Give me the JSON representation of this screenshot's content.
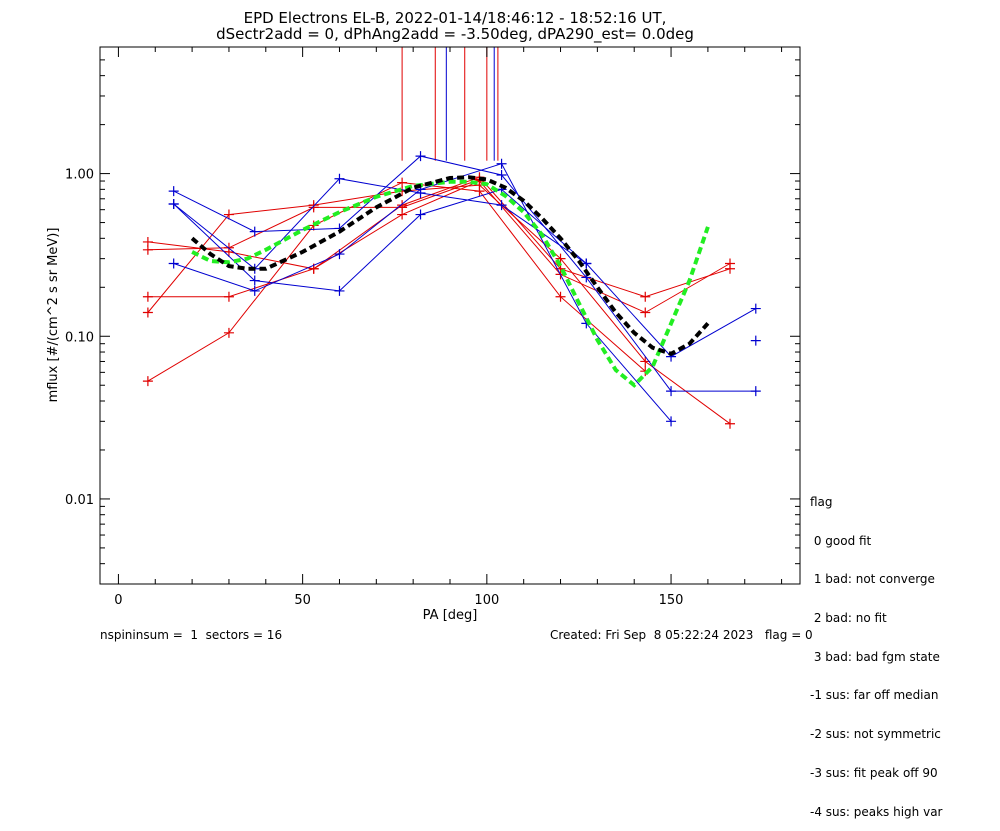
{
  "chart_data": {
    "type": "line",
    "title": "EPD Electrons EL-B, 2022-01-14/18:46:12 - 18:52:16 UT,",
    "subtitle": "dSectr2add = 0, dPhAng2add = -3.50deg, dPA290_est=   0.0deg",
    "xlabel": "PA [deg]",
    "ylabel": "mflux [#/(cm^2 s sr MeV)]",
    "xlim": [
      -5,
      185
    ],
    "ylim": [
      0.003,
      6
    ],
    "yscale": "log",
    "x_ticks": [
      0,
      50,
      100,
      150
    ],
    "x_tick_labels": [
      "0",
      "50",
      "100",
      "150"
    ],
    "y_ticks": [
      0.01,
      0.1,
      1.0
    ],
    "y_tick_labels": [
      "0.01",
      "0.10",
      "1.00"
    ],
    "grid": false,
    "colors": {
      "red": "#e00000",
      "blue": "#0000d0",
      "green": "#22ee22",
      "black": "#000000"
    },
    "series": [
      {
        "color": "red",
        "style": "line-plus",
        "x": [
          8,
          30,
          53,
          77,
          98,
          120,
          143,
          166
        ],
        "y": [
          0.38,
          0.33,
          0.26,
          0.64,
          0.95,
          0.26,
          0.175,
          0.26
        ]
      },
      {
        "color": "red",
        "style": "line-plus",
        "x": [
          8,
          30,
          53,
          77,
          98,
          120,
          143,
          166
        ],
        "y": [
          0.175,
          0.175,
          0.26,
          0.56,
          0.9,
          0.24,
          0.14,
          0.28
        ]
      },
      {
        "color": "red",
        "style": "line-plus",
        "x": [
          8,
          30,
          53,
          77,
          98,
          120,
          143,
          166
        ],
        "y": [
          0.14,
          0.56,
          0.64,
          0.78,
          0.85,
          0.3,
          0.07,
          0.029
        ]
      },
      {
        "color": "red",
        "style": "line-plus",
        "x": [
          8,
          30,
          53,
          77,
          98,
          120,
          143
        ],
        "y": [
          0.053,
          0.105,
          0.48,
          0.88,
          0.78,
          0.175,
          0.061
        ]
      },
      {
        "color": "red",
        "style": "line-plus",
        "x": [
          8,
          30,
          53,
          77,
          98
        ],
        "y": [
          0.34,
          0.35,
          0.62,
          0.62,
          0.92
        ]
      },
      {
        "color": "blue",
        "style": "line-plus",
        "x": [
          15,
          37,
          60,
          82,
          104,
          127,
          150,
          173
        ],
        "y": [
          0.78,
          0.44,
          0.46,
          1.28,
          0.98,
          0.23,
          0.046,
          0.046
        ]
      },
      {
        "color": "blue",
        "style": "line-plus",
        "x": [
          15,
          37,
          60,
          82,
          104,
          127,
          150,
          173
        ],
        "y": [
          0.65,
          0.22,
          0.19,
          0.56,
          0.8,
          0.28,
          0.075,
          0.148
        ]
      },
      {
        "color": "blue",
        "style": "line-plus",
        "x": [
          15,
          37,
          60,
          82,
          104,
          127,
          150
        ],
        "y": [
          0.28,
          0.19,
          0.32,
          0.8,
          1.15,
          0.12,
          0.03
        ]
      },
      {
        "color": "blue",
        "style": "line-plus",
        "x": [
          15,
          37,
          60,
          82,
          104,
          127
        ],
        "y": [
          0.65,
          0.26,
          0.93,
          0.76,
          0.64,
          0.28
        ]
      },
      {
        "color": "blue",
        "style": "plus",
        "x": [
          173
        ],
        "y": [
          0.094
        ]
      },
      {
        "color": "green",
        "style": "dashed-fit",
        "x": [
          20,
          25,
          30,
          35,
          40,
          50,
          60,
          70,
          80,
          90,
          95,
          100,
          105,
          110,
          115,
          120,
          125,
          130,
          135,
          140,
          145,
          150,
          155,
          160
        ],
        "y": [
          0.33,
          0.29,
          0.285,
          0.3,
          0.34,
          0.45,
          0.58,
          0.72,
          0.84,
          0.89,
          0.89,
          0.86,
          0.73,
          0.58,
          0.42,
          0.27,
          0.16,
          0.095,
          0.062,
          0.05,
          0.065,
          0.12,
          0.22,
          0.47
        ]
      },
      {
        "color": "black",
        "style": "dashed-fit",
        "x": [
          20,
          25,
          30,
          35,
          40,
          50,
          60,
          70,
          80,
          90,
          95,
          100,
          105,
          110,
          115,
          120,
          125,
          130,
          135,
          140,
          145,
          150,
          155,
          160
        ],
        "y": [
          0.4,
          0.32,
          0.27,
          0.26,
          0.26,
          0.33,
          0.44,
          0.62,
          0.82,
          0.94,
          0.95,
          0.92,
          0.82,
          0.68,
          0.53,
          0.4,
          0.29,
          0.2,
          0.14,
          0.105,
          0.085,
          0.078,
          0.09,
          0.12
        ]
      }
    ],
    "vertical_markers": [
      {
        "x": 77,
        "color": "red"
      },
      {
        "x": 86,
        "color": "red"
      },
      {
        "x": 89,
        "color": "blue"
      },
      {
        "x": 94,
        "color": "red"
      },
      {
        "x": 100,
        "color": "red"
      },
      {
        "x": 102,
        "color": "blue"
      },
      {
        "x": 103,
        "color": "red"
      }
    ],
    "marker_range": [
      1.2,
      6
    ]
  },
  "flag_legend": {
    "title": "flag",
    "items": [
      " 0 good fit",
      " 1 bad: not converge",
      " 2 bad: no fit",
      " 3 bad: bad fgm state",
      "-1 sus: far off median",
      "-2 sus: not symmetric",
      "-3 sus: fit peak off 90",
      "-4 sus: peaks high var"
    ]
  },
  "footer": {
    "left": "nspininsum =  1  sectors = 16",
    "right": "Created: Fri Sep  8 05:22:24 2023   flag = 0"
  }
}
